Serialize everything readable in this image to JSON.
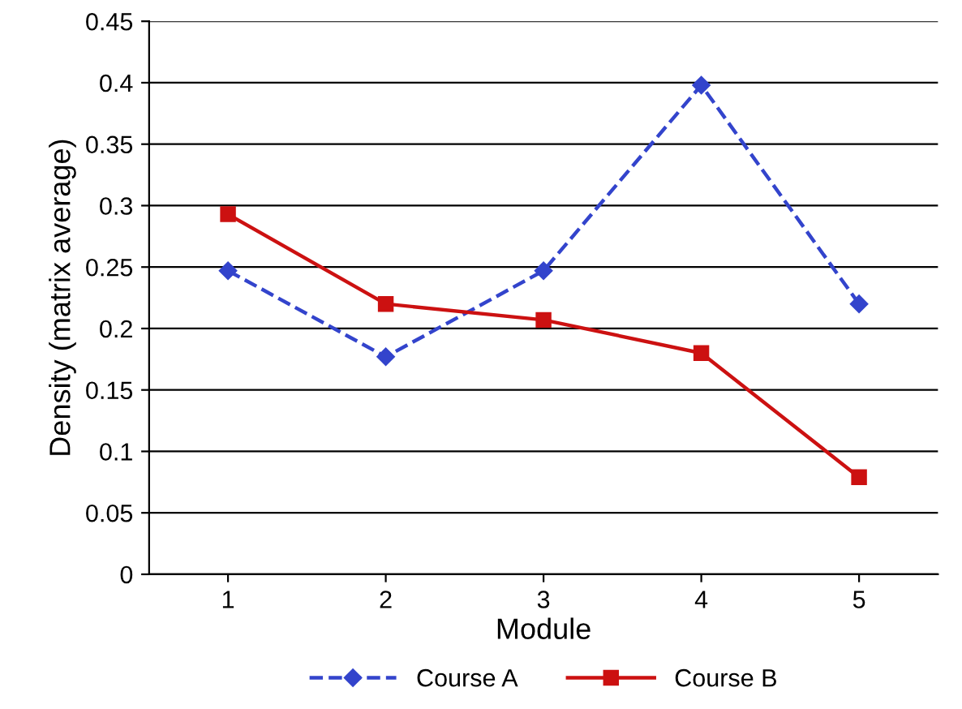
{
  "chart_data": {
    "type": "line",
    "xlabel": "Module",
    "ylabel": "Density (matrix average)",
    "categories": [
      "1",
      "2",
      "3",
      "4",
      "5"
    ],
    "series": [
      {
        "name": "Course A",
        "color": "#3344cc",
        "values": [
          0.247,
          0.177,
          0.247,
          0.398,
          0.22
        ],
        "marker": "diamond",
        "line_style": "dashed"
      },
      {
        "name": "Course B",
        "color": "#cc1111",
        "values": [
          0.293,
          0.22,
          0.207,
          0.18,
          0.079
        ],
        "marker": "square",
        "line_style": "solid"
      }
    ],
    "ylim": [
      0,
      0.45
    ],
    "yticks": [
      {
        "value": 0,
        "label": "0"
      },
      0.05,
      0.1,
      0.15,
      0.2,
      0.25,
      0.3,
      0.35,
      0.4,
      0.45
    ],
    "grid": "y",
    "legend": "bottom"
  }
}
